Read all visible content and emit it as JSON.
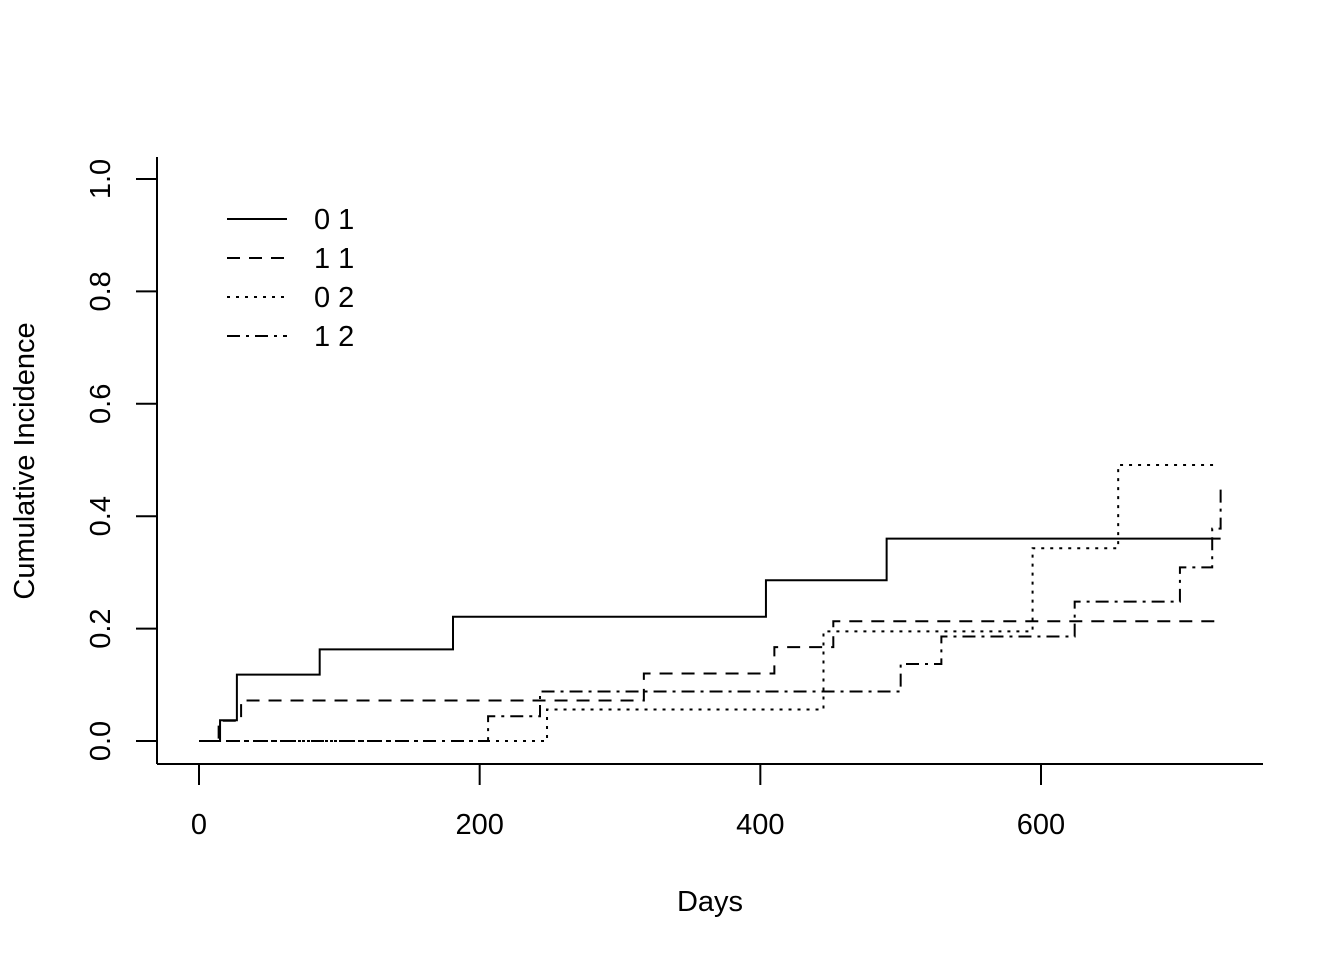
{
  "chart_data": {
    "type": "line",
    "step": true,
    "title": "",
    "xlabel": "Days",
    "ylabel": "Cumulative Incidence",
    "xlim": [
      -50,
      760
    ],
    "ylim": [
      -0.04,
      1.04
    ],
    "x_ticks": [
      0,
      200,
      400,
      600
    ],
    "x_tick_labels": [
      "0",
      "200",
      "400",
      "600"
    ],
    "y_ticks": [
      0.0,
      0.2,
      0.4,
      0.6,
      0.8,
      1.0
    ],
    "y_tick_labels": [
      "0.0",
      "0.2",
      "0.4",
      "0.6",
      "0.8",
      "1.0"
    ],
    "grid": false,
    "legend_position": "top-left",
    "series": [
      {
        "name": "0 1",
        "line_style": "solid",
        "x": [
          0,
          15,
          27,
          86,
          181,
          404,
          490,
          728
        ],
        "y": [
          0.0,
          0.037,
          0.118,
          0.163,
          0.221,
          0.286,
          0.36,
          0.36
        ]
      },
      {
        "name": "1 1",
        "line_style": "dashed",
        "x": [
          0,
          14,
          30,
          241,
          317,
          410,
          446,
          452,
          728
        ],
        "y": [
          0.0,
          0.036,
          0.072,
          0.072,
          0.12,
          0.167,
          0.167,
          0.213,
          0.213
        ]
      },
      {
        "name": "0 2",
        "line_style": "dotted",
        "x": [
          0,
          248,
          407,
          445,
          531,
          594,
          655,
          723
        ],
        "y": [
          0.0,
          0.056,
          0.056,
          0.195,
          0.195,
          0.343,
          0.491,
          0.491
        ]
      },
      {
        "name": "1 2",
        "line_style": "dashdot",
        "x": [
          0,
          206,
          243,
          315,
          500,
          529,
          624,
          699,
          722,
          728
        ],
        "y": [
          0.0,
          0.044,
          0.088,
          0.088,
          0.137,
          0.186,
          0.248,
          0.309,
          0.378,
          0.448
        ]
      }
    ]
  }
}
